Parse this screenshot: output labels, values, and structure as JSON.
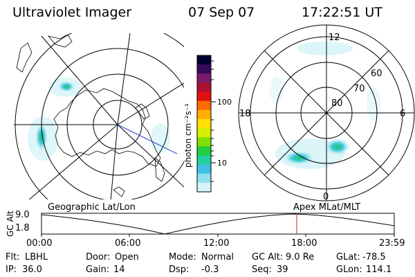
{
  "header": {
    "instrument": "Ultraviolet Imager",
    "date": "07 Sep 07",
    "time": "17:22:51 UT"
  },
  "geo_map": {
    "label": "Geographic Lat/Lon"
  },
  "mlt_map": {
    "label": "Apex  MLat/MLT",
    "mlt_labels": {
      "top": "12",
      "left": "18",
      "right": "6",
      "bottom": "0"
    },
    "lat_labels": [
      "60",
      "70",
      "80"
    ]
  },
  "colorbar": {
    "unit_label": "photon cm⁻²s⁻¹",
    "ticks": [
      "100",
      "10"
    ],
    "colors": [
      "#000033",
      "#3a0a5a",
      "#7a1a6a",
      "#aa1030",
      "#e01010",
      "#ff6a00",
      "#ffb000",
      "#ffe000",
      "#d8f000",
      "#80e000",
      "#20d040",
      "#20d0a0",
      "#40c0e0",
      "#90e0ee",
      "#d8f4f8"
    ]
  },
  "altitude_plot": {
    "axis_title": "GC Alt",
    "y_ticks": [
      "9.0",
      "1.8"
    ],
    "x_ticks": [
      "00:00",
      "06:00",
      "12:00",
      "18:00",
      "23:59"
    ],
    "current_time_marker": "17:22:51",
    "marker_color": "#cc2222"
  },
  "footer": {
    "row1": [
      {
        "label": "Flt:",
        "value": "LBHL"
      },
      {
        "label": "Door:",
        "value": "Open"
      },
      {
        "label": "Mode:",
        "value": "Normal"
      },
      {
        "label": "GC Alt:",
        "value": "9.0 Re"
      },
      {
        "label": "GLat:",
        "value": "-78.5"
      }
    ],
    "row2": [
      {
        "label": "IP:",
        "value": "36.0"
      },
      {
        "label": "Gain:",
        "value": "14"
      },
      {
        "label": "Dsp:",
        "value": "-0.3"
      },
      {
        "label": "Seq:",
        "value": "39"
      },
      {
        "label": "GLon:",
        "value": "114.1"
      }
    ]
  }
}
